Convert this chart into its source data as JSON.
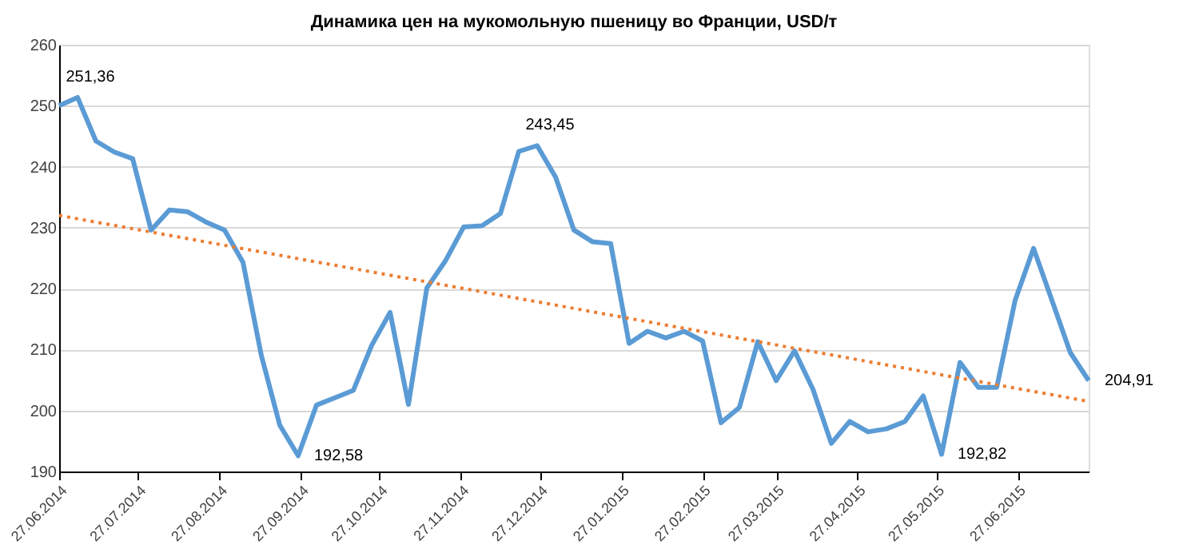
{
  "chart_data": {
    "type": "line",
    "title": "Динамика цен на мукомольную пшеницу во Франции, USD/т",
    "x": [
      "2014-06-27",
      "2014-07-04",
      "2014-07-11",
      "2014-07-18",
      "2014-07-25",
      "2014-08-01",
      "2014-08-08",
      "2014-08-15",
      "2014-08-22",
      "2014-08-29",
      "2014-09-05",
      "2014-09-12",
      "2014-09-19",
      "2014-09-26",
      "2014-10-03",
      "2014-10-10",
      "2014-10-17",
      "2014-10-24",
      "2014-10-31",
      "2014-11-07",
      "2014-11-14",
      "2014-11-21",
      "2014-11-28",
      "2014-12-05",
      "2014-12-12",
      "2014-12-19",
      "2014-12-26",
      "2015-01-02",
      "2015-01-09",
      "2015-01-16",
      "2015-01-23",
      "2015-01-30",
      "2015-02-06",
      "2015-02-13",
      "2015-02-20",
      "2015-02-27",
      "2015-03-06",
      "2015-03-13",
      "2015-03-20",
      "2015-03-27",
      "2015-04-03",
      "2015-04-10",
      "2015-04-17",
      "2015-04-24",
      "2015-05-01",
      "2015-05-08",
      "2015-05-15",
      "2015-05-22",
      "2015-05-29",
      "2015-06-05",
      "2015-06-12",
      "2015-06-19",
      "2015-06-26",
      "2015-07-03",
      "2015-07-10",
      "2015-07-17",
      "2015-07-24"
    ],
    "series": [
      {
        "color": "#5b9bd5",
        "values": [
          250,
          251.36,
          244.2,
          242.4,
          241.3,
          229.6,
          232.9,
          232.6,
          230.9,
          229.6,
          224.3,
          209,
          197.6,
          192.58,
          200.9,
          202.1,
          203.3,
          210.7,
          216.1,
          201,
          220.1,
          224.5,
          230.1,
          230.3,
          232.3,
          242.5,
          243.45,
          238.3,
          229.6,
          227.7,
          227.4,
          211,
          213,
          211.9,
          213,
          211.4,
          198,
          200.5,
          211.3,
          204.9,
          209.8,
          203.5,
          194.6,
          198.2,
          196.5,
          197,
          198.2,
          202.4,
          192.82,
          207.9,
          203.8,
          203.8,
          218.1,
          226.6,
          218.1,
          209.5,
          204.91
        ],
        "value_labels": [
          null,
          "251,36",
          null,
          null,
          null,
          null,
          null,
          null,
          null,
          null,
          null,
          null,
          null,
          "192,58",
          null,
          null,
          null,
          null,
          null,
          null,
          null,
          null,
          null,
          null,
          null,
          null,
          "243,45",
          null,
          null,
          null,
          null,
          null,
          null,
          null,
          null,
          null,
          null,
          null,
          null,
          null,
          null,
          null,
          null,
          null,
          null,
          null,
          null,
          null,
          "192,82",
          null,
          null,
          null,
          null,
          null,
          null,
          null,
          "204,91"
        ]
      },
      {
        "type": "line",
        "color": "#ed7d31",
        "line_style": "dotted",
        "x": [
          "2014-06-27",
          "2015-07-24"
        ],
        "values": [
          232.0,
          201.5
        ]
      }
    ],
    "xlim": [
      "2014-06-27",
      "2015-07-24"
    ],
    "xticks": [
      {
        "value": "2014-06-27",
        "label": "27.06.2014"
      },
      {
        "value": "2014-07-27",
        "label": "27.07.2014"
      },
      {
        "value": "2014-08-27",
        "label": "27.08.2014"
      },
      {
        "value": "2014-09-27",
        "label": "27.09.2014"
      },
      {
        "value": "2014-10-27",
        "label": "27.10.2014"
      },
      {
        "value": "2014-11-27",
        "label": "27.11.2014"
      },
      {
        "value": "2014-12-27",
        "label": "27.12.2014"
      },
      {
        "value": "2015-01-27",
        "label": "27.01.2015"
      },
      {
        "value": "2015-02-27",
        "label": "27.02.2015"
      },
      {
        "value": "2015-03-27",
        "label": "27.03.2015"
      },
      {
        "value": "2015-04-27",
        "label": "27.04.2015"
      },
      {
        "value": "2015-05-27",
        "label": "27.05.2015"
      },
      {
        "value": "2015-06-27",
        "label": "27.06.2015"
      }
    ],
    "ylim": [
      190,
      260
    ],
    "yticks": [
      190,
      200,
      210,
      220,
      230,
      240,
      250,
      260
    ],
    "grid": "y",
    "marker": "none",
    "line_style": "solid"
  }
}
